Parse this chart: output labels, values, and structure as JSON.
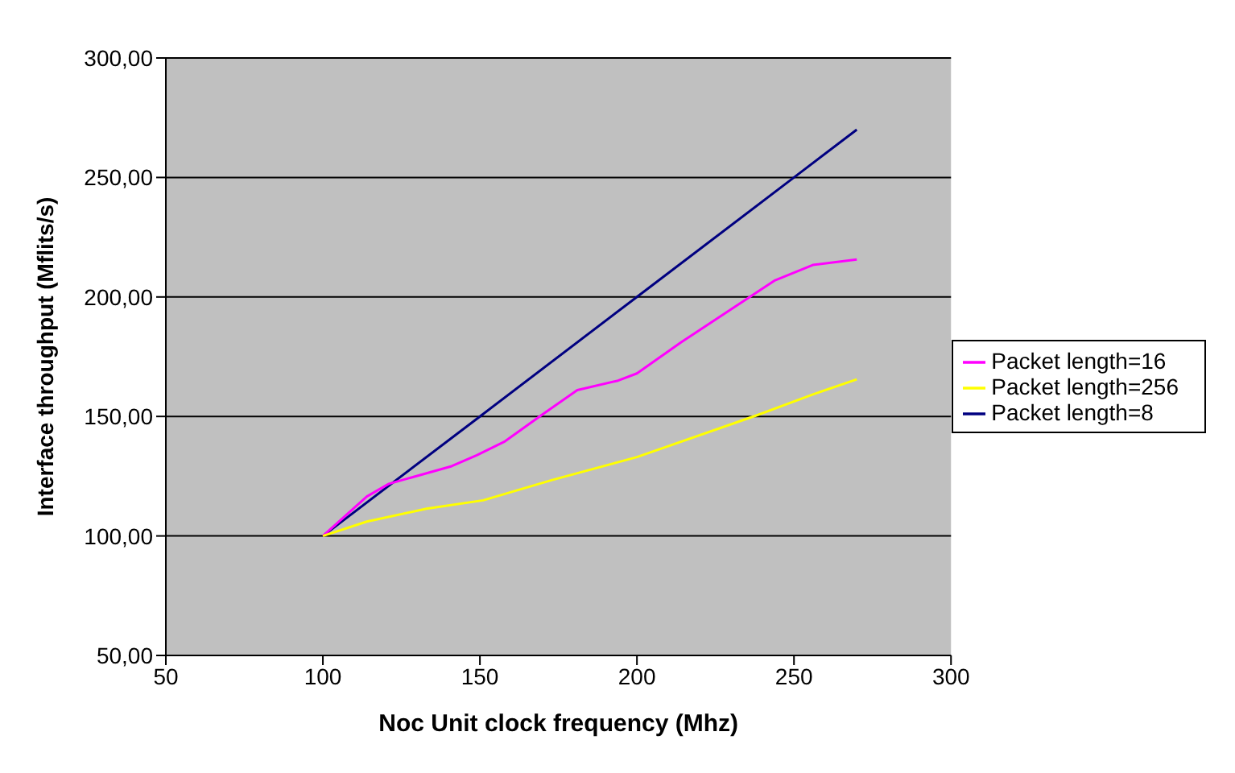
{
  "chart_data": {
    "type": "line",
    "xlabel": "Noc Unit clock frequency (Mhz)",
    "ylabel": "Interface throughput (Mflits/s)",
    "xlim": [
      50,
      300
    ],
    "xticks": [
      50,
      100,
      150,
      200,
      250,
      300
    ],
    "ylim": [
      50,
      300
    ],
    "yticks": [
      {
        "value": 50,
        "label": "50,00"
      },
      {
        "value": 100,
        "label": "100,00"
      },
      {
        "value": 150,
        "label": "150,00"
      },
      {
        "value": 200,
        "label": "200,00"
      },
      {
        "value": 250,
        "label": "250,00"
      },
      {
        "value": 300,
        "label": "300,00"
      }
    ],
    "grid": "y",
    "legend": "right",
    "marker": "none",
    "line_style": "solid",
    "series": [
      {
        "name": "Packet length=8",
        "color": "#000080",
        "x": [
          100,
          150,
          200,
          250,
          270
        ],
        "values": [
          100,
          150,
          200,
          250,
          270
        ]
      },
      {
        "name": "Packet length=16",
        "color": "#ff00ff",
        "x": [
          100,
          114,
          121,
          141,
          149,
          158,
          169,
          181,
          194,
          200,
          214,
          244,
          256,
          270
        ],
        "values": [
          100,
          116.5,
          121.8,
          129.2,
          133.8,
          139.6,
          150,
          161,
          165,
          168,
          181,
          207,
          213.4,
          215.7
        ]
      },
      {
        "name": "Packet length=256",
        "color": "#ffff00",
        "x": [
          100,
          114,
          133,
          151,
          173,
          200,
          238,
          256,
          270
        ],
        "values": [
          100,
          106,
          111.4,
          114.9,
          123.4,
          133,
          150.4,
          159.2,
          165.5
        ]
      }
    ]
  }
}
